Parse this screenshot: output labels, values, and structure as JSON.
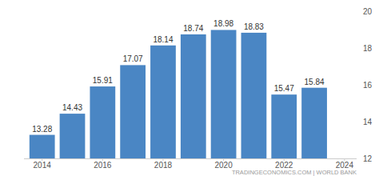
{
  "chart_data": {
    "type": "bar",
    "x": [
      2014,
      2015,
      2016,
      2017,
      2018,
      2019,
      2020,
      2021,
      2022,
      2023
    ],
    "values": [
      13.28,
      14.43,
      15.91,
      17.07,
      18.14,
      18.74,
      18.98,
      18.83,
      15.47,
      15.84
    ],
    "color": "#4a86c4",
    "xlim": [
      2013.4,
      2024.4
    ],
    "xticks": [
      2014,
      2016,
      2018,
      2020,
      2022,
      2024
    ],
    "ylim": [
      12,
      20
    ],
    "yticks": [
      12,
      14,
      16,
      18,
      20
    ],
    "grid": false,
    "data_labels": true,
    "annotations": [
      "TRADINGECONOMICS.COM | WORLD BANK"
    ]
  }
}
